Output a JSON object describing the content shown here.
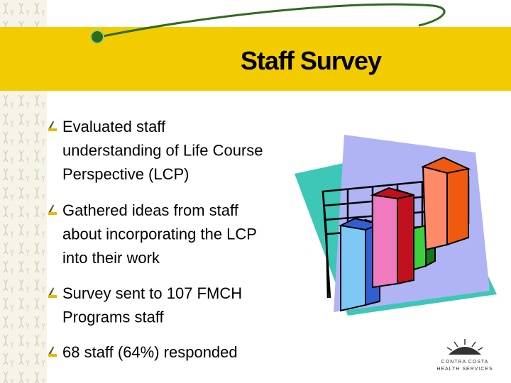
{
  "title": "Staff Survey",
  "bullets": [
    [
      "Evaluated staff",
      "understanding of Life Course",
      "Perspective (LCP)"
    ],
    [
      "Gathered ideas from staff",
      "about incorporating the LCP",
      "into their work"
    ],
    [
      "Survey sent to 107 FMCH",
      "Programs staff"
    ],
    [
      "68 staff (64%) responded"
    ]
  ],
  "logo": [
    "CONTRA COSTA",
    "HEALTH SERVICES"
  ]
}
